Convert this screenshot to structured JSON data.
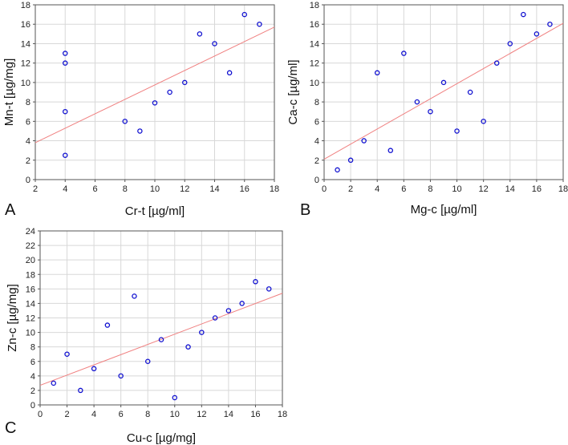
{
  "colors": {
    "points": "#1010d0",
    "fit_line": "#f08080",
    "grid": "#d8d8d8",
    "axis": "#555555"
  },
  "chart_data": [
    {
      "type": "scatter",
      "panel_label": "A",
      "xlabel": "Cr-t [µg/ml]",
      "ylabel": "Mn-t [µg/mg]",
      "xlim": [
        2,
        18
      ],
      "ylim": [
        0,
        18
      ],
      "xticks": [
        2,
        4,
        6,
        8,
        10,
        12,
        14,
        16,
        18
      ],
      "yticks": [
        0,
        2,
        4,
        6,
        8,
        10,
        12,
        14,
        16,
        18
      ],
      "grid": true,
      "points": [
        {
          "x": 4,
          "y": 13
        },
        {
          "x": 4,
          "y": 12
        },
        {
          "x": 4,
          "y": 7
        },
        {
          "x": 4,
          "y": 2.5
        },
        {
          "x": 8,
          "y": 6
        },
        {
          "x": 9,
          "y": 5
        },
        {
          "x": 10,
          "y": 7.9
        },
        {
          "x": 11,
          "y": 9
        },
        {
          "x": 12,
          "y": 10
        },
        {
          "x": 13,
          "y": 15
        },
        {
          "x": 14,
          "y": 14
        },
        {
          "x": 15,
          "y": 11
        },
        {
          "x": 16,
          "y": 17
        },
        {
          "x": 17,
          "y": 16
        }
      ],
      "fit_line": {
        "x0": 2,
        "y0": 3.8,
        "x1": 18,
        "y1": 15.7
      }
    },
    {
      "type": "scatter",
      "panel_label": "B",
      "xlabel": "Mg-c [µg/ml]",
      "ylabel": "Ca-c [µg/ml]",
      "xlim": [
        0,
        18
      ],
      "ylim": [
        0,
        18
      ],
      "xticks": [
        0,
        2,
        4,
        6,
        8,
        10,
        12,
        14,
        16,
        18
      ],
      "yticks": [
        0,
        2,
        4,
        6,
        8,
        10,
        12,
        14,
        16,
        18
      ],
      "grid": true,
      "points": [
        {
          "x": 1,
          "y": 1
        },
        {
          "x": 2,
          "y": 2
        },
        {
          "x": 3,
          "y": 4
        },
        {
          "x": 4,
          "y": 11
        },
        {
          "x": 5,
          "y": 3
        },
        {
          "x": 6,
          "y": 13
        },
        {
          "x": 7,
          "y": 8
        },
        {
          "x": 8,
          "y": 7
        },
        {
          "x": 9,
          "y": 10
        },
        {
          "x": 10,
          "y": 5
        },
        {
          "x": 11,
          "y": 9
        },
        {
          "x": 12,
          "y": 6
        },
        {
          "x": 13,
          "y": 12
        },
        {
          "x": 14,
          "y": 14
        },
        {
          "x": 15,
          "y": 17
        },
        {
          "x": 16,
          "y": 15
        },
        {
          "x": 17,
          "y": 16
        }
      ],
      "fit_line": {
        "x0": 0,
        "y0": 2.1,
        "x1": 18,
        "y1": 16.1
      }
    },
    {
      "type": "scatter",
      "panel_label": "C",
      "xlabel": "Cu-c [µg/mg]",
      "ylabel": "Zn-c [µg/mg]",
      "xlim": [
        0,
        18
      ],
      "ylim": [
        0,
        24
      ],
      "xticks": [
        0,
        2,
        4,
        6,
        8,
        10,
        12,
        14,
        16,
        18
      ],
      "yticks": [
        0,
        2,
        4,
        6,
        8,
        10,
        12,
        14,
        16,
        18,
        20,
        22,
        24
      ],
      "grid": true,
      "points": [
        {
          "x": 1,
          "y": 3
        },
        {
          "x": 2,
          "y": 7
        },
        {
          "x": 3,
          "y": 2
        },
        {
          "x": 4,
          "y": 5
        },
        {
          "x": 5,
          "y": 11
        },
        {
          "x": 6,
          "y": 4
        },
        {
          "x": 7,
          "y": 15
        },
        {
          "x": 8,
          "y": 6
        },
        {
          "x": 9,
          "y": 9
        },
        {
          "x": 10,
          "y": 1
        },
        {
          "x": 11,
          "y": 8
        },
        {
          "x": 12,
          "y": 10
        },
        {
          "x": 13,
          "y": 12
        },
        {
          "x": 14,
          "y": 13
        },
        {
          "x": 15,
          "y": 14
        },
        {
          "x": 16,
          "y": 17
        },
        {
          "x": 17,
          "y": 16
        }
      ],
      "fit_line": {
        "x0": 0,
        "y0": 2.7,
        "x1": 18,
        "y1": 15.4
      }
    }
  ]
}
